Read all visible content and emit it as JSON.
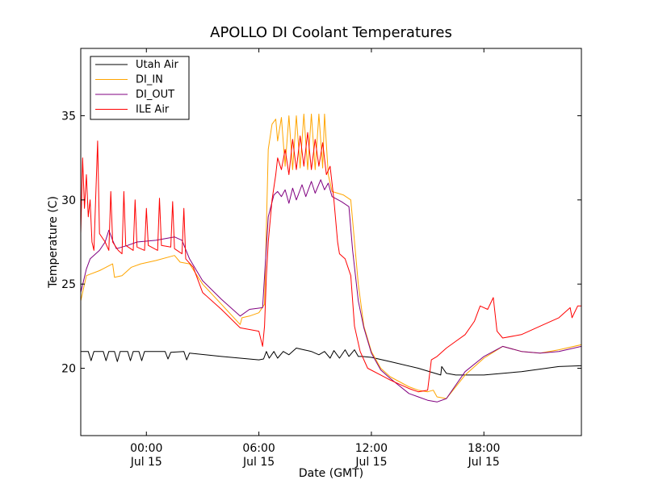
{
  "chart_data": {
    "type": "line",
    "title": "APOLLO DI Coolant Temperatures",
    "xlabel": "Date (GMT)",
    "ylabel": "Temperature (C)",
    "x_unit": "hours from 00:00 Jul 15 GMT",
    "xlim": [
      -3.5,
      23.2
    ],
    "ylim": [
      16,
      39
    ],
    "xticks": [
      {
        "x": 0,
        "time": "00:00",
        "date": "Jul 15"
      },
      {
        "x": 6,
        "time": "06:00",
        "date": "Jul 15"
      },
      {
        "x": 12,
        "time": "12:00",
        "date": "Jul 15"
      },
      {
        "x": 18,
        "time": "18:00",
        "date": "Jul 15"
      }
    ],
    "yticks": [
      {
        "y": 20,
        "label": "20"
      },
      {
        "y": 25,
        "label": "25"
      },
      {
        "y": 30,
        "label": "30"
      },
      {
        "y": 35,
        "label": "35"
      }
    ],
    "legend_position": "top-left",
    "series": [
      {
        "name": "Utah Air",
        "color": "#000000",
        "points": [
          [
            -3.5,
            21.0
          ],
          [
            -3.1,
            21.0
          ],
          [
            -2.95,
            20.45
          ],
          [
            -2.8,
            21.0
          ],
          [
            -2.3,
            21.0
          ],
          [
            -2.15,
            20.45
          ],
          [
            -2.0,
            21.0
          ],
          [
            -1.7,
            21.0
          ],
          [
            -1.55,
            20.4
          ],
          [
            -1.4,
            21.0
          ],
          [
            -1.0,
            21.0
          ],
          [
            -0.85,
            20.45
          ],
          [
            -0.7,
            21.0
          ],
          [
            -0.4,
            21.0
          ],
          [
            -0.25,
            20.45
          ],
          [
            -0.1,
            21.0
          ],
          [
            1.0,
            21.0
          ],
          [
            1.15,
            20.55
          ],
          [
            1.3,
            20.95
          ],
          [
            2.0,
            21.0
          ],
          [
            2.15,
            20.5
          ],
          [
            2.3,
            20.9
          ],
          [
            4.0,
            20.7
          ],
          [
            6.0,
            20.5
          ],
          [
            6.25,
            20.55
          ],
          [
            6.4,
            21.0
          ],
          [
            6.55,
            20.6
          ],
          [
            6.8,
            21.0
          ],
          [
            7.0,
            20.6
          ],
          [
            7.3,
            21.0
          ],
          [
            7.6,
            20.8
          ],
          [
            8.0,
            21.2
          ],
          [
            8.4,
            21.1
          ],
          [
            8.8,
            21.0
          ],
          [
            9.2,
            20.8
          ],
          [
            9.5,
            21.0
          ],
          [
            9.8,
            20.6
          ],
          [
            10.0,
            21.05
          ],
          [
            10.3,
            20.6
          ],
          [
            10.6,
            21.1
          ],
          [
            10.8,
            20.7
          ],
          [
            11.1,
            21.1
          ],
          [
            11.3,
            20.7
          ],
          [
            11.5,
            20.7
          ],
          [
            12.0,
            20.65
          ],
          [
            13.0,
            20.4
          ],
          [
            14.5,
            20.0
          ],
          [
            15.7,
            19.6
          ],
          [
            15.75,
            20.1
          ],
          [
            16.0,
            19.7
          ],
          [
            16.5,
            19.6
          ],
          [
            18.0,
            19.6
          ],
          [
            20.0,
            19.8
          ],
          [
            22.0,
            20.1
          ],
          [
            23.2,
            20.15
          ]
        ]
      },
      {
        "name": "DI_IN",
        "color": "#ffa500",
        "points": [
          [
            -3.5,
            24.0
          ],
          [
            -3.2,
            25.5
          ],
          [
            -2.5,
            25.8
          ],
          [
            -1.8,
            26.2
          ],
          [
            -1.7,
            25.4
          ],
          [
            -1.3,
            25.5
          ],
          [
            -0.8,
            26.0
          ],
          [
            -0.3,
            26.2
          ],
          [
            0.5,
            26.4
          ],
          [
            1.5,
            26.7
          ],
          [
            1.8,
            26.3
          ],
          [
            2.3,
            26.2
          ],
          [
            3.0,
            25.0
          ],
          [
            4.0,
            23.8
          ],
          [
            5.0,
            22.6
          ],
          [
            5.1,
            23.0
          ],
          [
            5.5,
            23.1
          ],
          [
            6.0,
            23.3
          ],
          [
            6.3,
            23.8
          ],
          [
            6.5,
            33.0
          ],
          [
            6.7,
            34.5
          ],
          [
            6.9,
            34.8
          ],
          [
            7.0,
            33.5
          ],
          [
            7.2,
            34.9
          ],
          [
            7.4,
            32.0
          ],
          [
            7.6,
            35.0
          ],
          [
            7.8,
            31.8
          ],
          [
            8.0,
            35.0
          ],
          [
            8.2,
            31.9
          ],
          [
            8.4,
            35.1
          ],
          [
            8.6,
            31.8
          ],
          [
            8.8,
            35.1
          ],
          [
            9.0,
            31.8
          ],
          [
            9.2,
            35.1
          ],
          [
            9.4,
            31.9
          ],
          [
            9.5,
            35.1
          ],
          [
            9.7,
            31.5
          ],
          [
            9.9,
            30.5
          ],
          [
            10.5,
            30.3
          ],
          [
            10.9,
            30.0
          ],
          [
            11.3,
            25.0
          ],
          [
            11.6,
            22.5
          ],
          [
            12.0,
            21.0
          ],
          [
            12.5,
            20.0
          ],
          [
            13.0,
            19.5
          ],
          [
            14.0,
            18.9
          ],
          [
            14.5,
            18.7
          ],
          [
            15.0,
            18.6
          ],
          [
            15.3,
            18.7
          ],
          [
            15.5,
            18.3
          ],
          [
            16.0,
            18.2
          ],
          [
            17.0,
            19.6
          ],
          [
            18.0,
            20.6
          ],
          [
            19.0,
            21.3
          ],
          [
            20.0,
            21.0
          ],
          [
            21.0,
            20.9
          ],
          [
            22.0,
            21.1
          ],
          [
            23.2,
            21.4
          ]
        ]
      },
      {
        "name": "DI_OUT",
        "color": "#800080",
        "points": [
          [
            -3.5,
            24.5
          ],
          [
            -3.2,
            25.9
          ],
          [
            -3.0,
            26.5
          ],
          [
            -2.5,
            27.0
          ],
          [
            -2.2,
            27.5
          ],
          [
            -2.0,
            28.2
          ],
          [
            -1.8,
            27.6
          ],
          [
            -1.6,
            27.1
          ],
          [
            -1.0,
            27.3
          ],
          [
            -0.5,
            27.5
          ],
          [
            0.5,
            27.6
          ],
          [
            1.5,
            27.8
          ],
          [
            1.9,
            27.6
          ],
          [
            2.3,
            26.5
          ],
          [
            3.0,
            25.2
          ],
          [
            4.0,
            24.1
          ],
          [
            5.0,
            23.1
          ],
          [
            5.5,
            23.5
          ],
          [
            6.2,
            23.6
          ],
          [
            6.5,
            29.0
          ],
          [
            6.8,
            30.3
          ],
          [
            7.0,
            30.5
          ],
          [
            7.2,
            30.2
          ],
          [
            7.4,
            30.6
          ],
          [
            7.6,
            29.8
          ],
          [
            7.8,
            30.7
          ],
          [
            8.0,
            30.0
          ],
          [
            8.3,
            30.9
          ],
          [
            8.5,
            30.2
          ],
          [
            8.8,
            31.1
          ],
          [
            9.0,
            30.4
          ],
          [
            9.3,
            31.2
          ],
          [
            9.5,
            30.6
          ],
          [
            9.7,
            31.0
          ],
          [
            9.9,
            30.2
          ],
          [
            10.4,
            29.9
          ],
          [
            10.8,
            29.6
          ],
          [
            11.0,
            27.0
          ],
          [
            11.3,
            24.0
          ],
          [
            11.6,
            22.4
          ],
          [
            12.0,
            20.9
          ],
          [
            12.5,
            19.9
          ],
          [
            13.0,
            19.4
          ],
          [
            14.0,
            18.5
          ],
          [
            14.5,
            18.3
          ],
          [
            15.0,
            18.1
          ],
          [
            15.5,
            18.0
          ],
          [
            16.0,
            18.2
          ],
          [
            17.0,
            19.8
          ],
          [
            18.0,
            20.7
          ],
          [
            19.0,
            21.3
          ],
          [
            20.0,
            21.0
          ],
          [
            21.0,
            20.9
          ],
          [
            22.0,
            21.0
          ],
          [
            23.2,
            21.3
          ]
        ]
      },
      {
        "name": "ILE Air",
        "color": "#ff0000",
        "points": [
          [
            -3.5,
            28.0
          ],
          [
            -3.4,
            32.5
          ],
          [
            -3.3,
            29.5
          ],
          [
            -3.2,
            31.5
          ],
          [
            -3.1,
            29.0
          ],
          [
            -3.0,
            30.0
          ],
          [
            -2.9,
            27.5
          ],
          [
            -2.8,
            27.0
          ],
          [
            -2.6,
            33.5
          ],
          [
            -2.5,
            28.0
          ],
          [
            -2.2,
            27.5
          ],
          [
            -2.0,
            27.0
          ],
          [
            -1.9,
            30.5
          ],
          [
            -1.8,
            27.5
          ],
          [
            -1.5,
            27.0
          ],
          [
            -1.3,
            26.8
          ],
          [
            -1.2,
            30.5
          ],
          [
            -1.1,
            27.3
          ],
          [
            -0.7,
            27.0
          ],
          [
            -0.6,
            30.0
          ],
          [
            -0.5,
            27.2
          ],
          [
            -0.1,
            27.0
          ],
          [
            0.0,
            29.5
          ],
          [
            0.1,
            27.3
          ],
          [
            0.6,
            27.0
          ],
          [
            0.7,
            30.1
          ],
          [
            0.8,
            27.3
          ],
          [
            1.3,
            27.2
          ],
          [
            1.4,
            29.9
          ],
          [
            1.5,
            27.1
          ],
          [
            1.9,
            26.8
          ],
          [
            2.0,
            29.5
          ],
          [
            2.1,
            26.5
          ],
          [
            2.5,
            26.0
          ],
          [
            3.0,
            24.5
          ],
          [
            4.0,
            23.5
          ],
          [
            5.0,
            22.4
          ],
          [
            5.5,
            22.3
          ],
          [
            6.0,
            22.2
          ],
          [
            6.2,
            21.3
          ],
          [
            6.3,
            22.5
          ],
          [
            6.4,
            25.5
          ],
          [
            6.5,
            27.5
          ],
          [
            6.7,
            30.0
          ],
          [
            6.9,
            31.5
          ],
          [
            7.0,
            32.5
          ],
          [
            7.2,
            31.8
          ],
          [
            7.4,
            33.0
          ],
          [
            7.6,
            31.5
          ],
          [
            7.8,
            33.6
          ],
          [
            8.0,
            31.8
          ],
          [
            8.2,
            33.8
          ],
          [
            8.4,
            32.0
          ],
          [
            8.6,
            34.0
          ],
          [
            8.8,
            31.8
          ],
          [
            9.0,
            33.6
          ],
          [
            9.2,
            32.0
          ],
          [
            9.4,
            33.4
          ],
          [
            9.6,
            31.5
          ],
          [
            9.8,
            32.0
          ],
          [
            10.0,
            30.0
          ],
          [
            10.2,
            27.5
          ],
          [
            10.3,
            26.8
          ],
          [
            10.6,
            26.5
          ],
          [
            10.9,
            25.5
          ],
          [
            11.1,
            22.5
          ],
          [
            11.4,
            21.0
          ],
          [
            11.8,
            20.0
          ],
          [
            12.5,
            19.6
          ],
          [
            13.0,
            19.3
          ],
          [
            14.0,
            18.8
          ],
          [
            14.5,
            18.6
          ],
          [
            15.0,
            18.7
          ],
          [
            15.2,
            20.5
          ],
          [
            15.5,
            20.7
          ],
          [
            16.0,
            21.2
          ],
          [
            16.5,
            21.6
          ],
          [
            17.0,
            22.0
          ],
          [
            17.5,
            22.8
          ],
          [
            17.8,
            23.7
          ],
          [
            18.2,
            23.5
          ],
          [
            18.5,
            24.2
          ],
          [
            18.7,
            22.2
          ],
          [
            19.0,
            21.8
          ],
          [
            20.0,
            22.0
          ],
          [
            21.0,
            22.5
          ],
          [
            22.0,
            23.0
          ],
          [
            22.6,
            23.6
          ],
          [
            22.7,
            23.0
          ],
          [
            23.0,
            23.7
          ],
          [
            23.2,
            23.7
          ]
        ]
      }
    ]
  }
}
